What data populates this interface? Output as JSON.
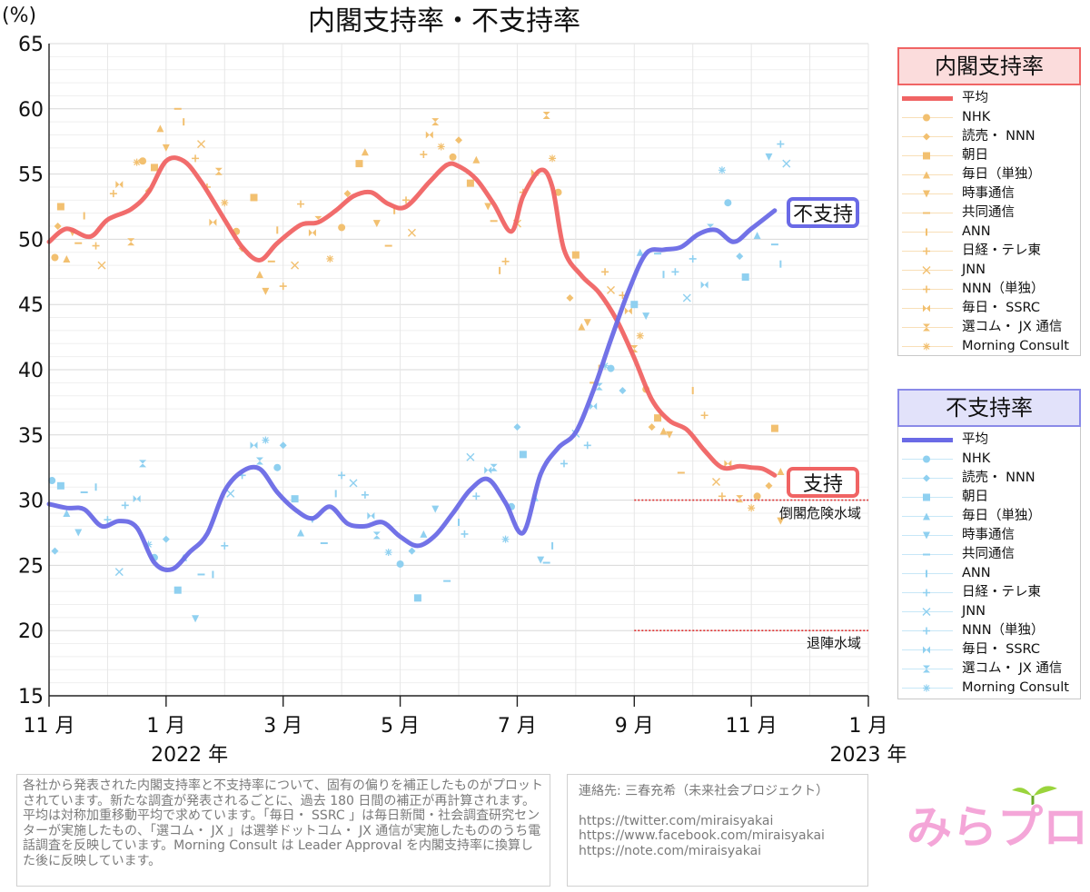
{
  "title": "内閣支持率・不支持率",
  "y_unit": "(%)",
  "colors": {
    "approve_avg": "#f06464",
    "disapprove_avg": "#6a6ae6",
    "approve_head_bg": "#fbdcdc",
    "disapprove_head_bg": "#e2e2fa",
    "approve_points": "#f2c070",
    "disapprove_points": "#8fd0f0",
    "threshold": "#e03030"
  },
  "labels": {
    "disapprove_tag": "不支持",
    "approve_tag": "支持",
    "danger_zone": "倒閣危険水域",
    "resign_zone": "退陣水域"
  },
  "legend_approval": {
    "title": "内閣支持率",
    "items": [
      "平均",
      "NHK",
      "読売・ NNN",
      "朝日",
      "毎日（単独）",
      "時事通信",
      "共同通信",
      "ANN",
      "日経・テレ東",
      "JNN",
      "NNN（単独）",
      "毎日・ SSRC",
      "選コム・ JX 通信",
      "Morning Consult"
    ]
  },
  "legend_disapproval": {
    "title": "不支持率",
    "items": [
      "平均",
      "NHK",
      "読売・ NNN",
      "朝日",
      "毎日（単独）",
      "時事通信",
      "共同通信",
      "ANN",
      "日経・テレ東",
      "JNN",
      "NNN（単独）",
      "毎日・ SSRC",
      "選コム・ JX 通信",
      "Morning Consult"
    ]
  },
  "note": "各社から発表された内閣支持率と不支持率について、固有の偏りを補正したものがプロットされています。新たな調査が発表されるごとに、過去 180 日間の補正が再計算されます。平均は対称加重移動平均で求めています。「毎日・ SSRC 」は毎日新聞・社会調査研究センターが実施したもの、「選コム・ JX 」は選挙ドットコム・ JX 通信が実施したもののうち電話調査を反映しています。Morning Consult は Leader Approval を内閣支持率に換算した後に反映しています。",
  "contact": {
    "title": "連絡先: 三春充希（未来社会プロジェクト）",
    "links": [
      "https://twitter.com/miraisyakai",
      "https://www.facebook.com/miraisyakai",
      "https://note.com/miraisyakai"
    ]
  },
  "logo_text": "みらプロ",
  "chart_data": {
    "type": "line",
    "title": "内閣支持率・不支持率",
    "ylabel": "(%)",
    "ylim": [
      15,
      65
    ],
    "y_ticks": [
      15,
      20,
      25,
      30,
      35,
      40,
      45,
      50,
      55,
      60,
      65
    ],
    "xlim": [
      0,
      14
    ],
    "x_ticks": [
      {
        "x": 0,
        "label": "11 月"
      },
      {
        "x": 2,
        "label": "1 月"
      },
      {
        "x": 4,
        "label": "3 月"
      },
      {
        "x": 6,
        "label": "5 月"
      },
      {
        "x": 8,
        "label": "7 月"
      },
      {
        "x": 10,
        "label": "9 月"
      },
      {
        "x": 12,
        "label": "11 月"
      },
      {
        "x": 14,
        "label": "1 月"
      }
    ],
    "year_labels": [
      {
        "x": 2.4,
        "label": "2022 年"
      },
      {
        "x": 14,
        "label": "2023 年"
      }
    ],
    "x_unit": "months since 2021-11-01",
    "grid": true,
    "thresholds": [
      {
        "y": 30,
        "x_start": 10,
        "label": "倒閣危険水域"
      },
      {
        "y": 20,
        "x_start": 10,
        "label": "退陣水域"
      }
    ],
    "series": [
      {
        "name": "内閣支持率 平均",
        "kind": "average",
        "points": [
          [
            0,
            49.8
          ],
          [
            0.3,
            50.8
          ],
          [
            0.7,
            50.2
          ],
          [
            1.0,
            51.5
          ],
          [
            1.4,
            52.3
          ],
          [
            1.7,
            53.6
          ],
          [
            2.0,
            56.0
          ],
          [
            2.3,
            56.0
          ],
          [
            2.6,
            54.4
          ],
          [
            3.0,
            51.5
          ],
          [
            3.3,
            49.4
          ],
          [
            3.6,
            48.4
          ],
          [
            3.9,
            49.7
          ],
          [
            4.3,
            51.1
          ],
          [
            4.6,
            51.3
          ],
          [
            4.9,
            52.2
          ],
          [
            5.2,
            53.3
          ],
          [
            5.5,
            53.6
          ],
          [
            5.8,
            52.7
          ],
          [
            6.1,
            52.5
          ],
          [
            6.5,
            54.4
          ],
          [
            6.8,
            55.7
          ],
          [
            7.0,
            55.6
          ],
          [
            7.3,
            54.6
          ],
          [
            7.6,
            52.7
          ],
          [
            7.9,
            50.6
          ],
          [
            8.1,
            53.3
          ],
          [
            8.4,
            55.3
          ],
          [
            8.6,
            54.0
          ],
          [
            8.8,
            49.2
          ],
          [
            9.1,
            47.2
          ],
          [
            9.4,
            45.9
          ],
          [
            9.7,
            43.8
          ],
          [
            10.0,
            40.9
          ],
          [
            10.3,
            37.7
          ],
          [
            10.6,
            36.1
          ],
          [
            10.9,
            35.4
          ],
          [
            11.2,
            33.8
          ],
          [
            11.5,
            32.5
          ],
          [
            11.8,
            32.6
          ],
          [
            12.0,
            32.5
          ],
          [
            12.2,
            32.4
          ],
          [
            12.4,
            31.9
          ]
        ]
      },
      {
        "name": "内閣不支持率 平均",
        "kind": "average",
        "points": [
          [
            0,
            29.7
          ],
          [
            0.3,
            29.4
          ],
          [
            0.6,
            29.3
          ],
          [
            0.9,
            28.0
          ],
          [
            1.2,
            28.4
          ],
          [
            1.5,
            27.9
          ],
          [
            1.8,
            25.2
          ],
          [
            2.1,
            24.7
          ],
          [
            2.4,
            26.0
          ],
          [
            2.7,
            27.4
          ],
          [
            3.0,
            30.7
          ],
          [
            3.3,
            32.2
          ],
          [
            3.6,
            32.4
          ],
          [
            3.9,
            30.6
          ],
          [
            4.2,
            29.3
          ],
          [
            4.5,
            28.6
          ],
          [
            4.8,
            29.5
          ],
          [
            5.1,
            28.2
          ],
          [
            5.4,
            28.0
          ],
          [
            5.7,
            28.3
          ],
          [
            6.0,
            27.2
          ],
          [
            6.3,
            26.5
          ],
          [
            6.6,
            27.3
          ],
          [
            6.9,
            29.0
          ],
          [
            7.2,
            30.8
          ],
          [
            7.5,
            31.6
          ],
          [
            7.8,
            29.8
          ],
          [
            8.1,
            27.5
          ],
          [
            8.4,
            32.0
          ],
          [
            8.7,
            34.0
          ],
          [
            9.0,
            35.2
          ],
          [
            9.3,
            38.4
          ],
          [
            9.6,
            42.3
          ],
          [
            9.9,
            46.0
          ],
          [
            10.2,
            48.9
          ],
          [
            10.5,
            49.2
          ],
          [
            10.8,
            49.4
          ],
          [
            11.1,
            50.4
          ],
          [
            11.4,
            50.7
          ],
          [
            11.7,
            49.8
          ],
          [
            12.0,
            50.8
          ],
          [
            12.4,
            52.2
          ]
        ]
      },
      {
        "name": "内閣支持率 各社",
        "kind": "points",
        "points": [
          [
            0.1,
            48.6
          ],
          [
            0.15,
            51
          ],
          [
            0.2,
            52.5
          ],
          [
            0.3,
            48.5
          ],
          [
            0.4,
            50.5
          ],
          [
            0.5,
            49.7
          ],
          [
            0.6,
            51.8
          ],
          [
            0.8,
            49.5
          ],
          [
            0.9,
            48
          ],
          [
            1.1,
            53.5
          ],
          [
            1.2,
            54.2
          ],
          [
            1.4,
            49.8
          ],
          [
            1.5,
            55.9
          ],
          [
            1.6,
            56
          ],
          [
            1.7,
            53.7
          ],
          [
            1.8,
            55.5
          ],
          [
            1.9,
            58.5
          ],
          [
            2.0,
            57
          ],
          [
            2.2,
            60
          ],
          [
            2.3,
            59
          ],
          [
            2.5,
            56.2
          ],
          [
            2.6,
            57.3
          ],
          [
            2.7,
            54
          ],
          [
            2.8,
            51.3
          ],
          [
            2.9,
            55.2
          ],
          [
            3.0,
            52.8
          ],
          [
            3.2,
            50.6
          ],
          [
            3.3,
            49.3
          ],
          [
            3.5,
            53.2
          ],
          [
            3.6,
            47.3
          ],
          [
            3.7,
            46
          ],
          [
            3.8,
            48.3
          ],
          [
            3.9,
            50.7
          ],
          [
            4.0,
            46.4
          ],
          [
            4.2,
            48
          ],
          [
            4.3,
            52.7
          ],
          [
            4.5,
            50.5
          ],
          [
            4.6,
            51.5
          ],
          [
            4.8,
            48.5
          ],
          [
            5.0,
            50.9
          ],
          [
            5.1,
            53.5
          ],
          [
            5.3,
            55.8
          ],
          [
            5.4,
            56.7
          ],
          [
            5.6,
            51.2
          ],
          [
            5.8,
            49.5
          ],
          [
            5.9,
            52.2
          ],
          [
            6.1,
            53
          ],
          [
            6.2,
            50.5
          ],
          [
            6.4,
            56.5
          ],
          [
            6.5,
            58
          ],
          [
            6.6,
            59
          ],
          [
            6.7,
            57.1
          ],
          [
            6.9,
            56.3
          ],
          [
            7.0,
            57.6
          ],
          [
            7.2,
            54.3
          ],
          [
            7.3,
            56.1
          ],
          [
            7.5,
            52.5
          ],
          [
            7.6,
            51.4
          ],
          [
            7.7,
            47.6
          ],
          [
            7.8,
            48.3
          ],
          [
            8.0,
            51.2
          ],
          [
            8.1,
            53.6
          ],
          [
            8.3,
            55.1
          ],
          [
            8.5,
            59.5
          ],
          [
            8.6,
            56.2
          ],
          [
            8.7,
            53.6
          ],
          [
            8.9,
            45.5
          ],
          [
            9.0,
            48.8
          ],
          [
            9.1,
            43.3
          ],
          [
            9.2,
            43.6
          ],
          [
            9.3,
            39
          ],
          [
            9.4,
            40.1
          ],
          [
            9.5,
            47.5
          ],
          [
            9.6,
            46.1
          ],
          [
            9.8,
            45.7
          ],
          [
            9.9,
            44.5
          ],
          [
            10.0,
            41.6
          ],
          [
            10.1,
            42.6
          ],
          [
            10.2,
            38.5
          ],
          [
            10.3,
            35.6
          ],
          [
            10.4,
            36.3
          ],
          [
            10.5,
            35.3
          ],
          [
            10.6,
            35.0
          ],
          [
            10.8,
            32.1
          ],
          [
            11.0,
            38.4
          ],
          [
            11.2,
            36.5
          ],
          [
            11.4,
            31.4
          ],
          [
            11.5,
            30.3
          ],
          [
            11.6,
            32.8
          ],
          [
            11.8,
            30.1
          ],
          [
            12.0,
            29.4
          ],
          [
            12.1,
            30.3
          ],
          [
            12.3,
            31.1
          ],
          [
            12.4,
            35.5
          ],
          [
            12.5,
            32.2
          ],
          [
            12.5,
            28.4
          ]
        ]
      },
      {
        "name": "内閣不支持率 各社",
        "kind": "points",
        "points": [
          [
            0.05,
            31.5
          ],
          [
            0.1,
            26.1
          ],
          [
            0.2,
            31.1
          ],
          [
            0.3,
            29
          ],
          [
            0.5,
            27.5
          ],
          [
            0.6,
            30.6
          ],
          [
            0.8,
            31
          ],
          [
            1.0,
            28.5
          ],
          [
            1.2,
            24.5
          ],
          [
            1.3,
            29.6
          ],
          [
            1.5,
            30.1
          ],
          [
            1.6,
            32.8
          ],
          [
            1.7,
            26.6
          ],
          [
            1.8,
            25.6
          ],
          [
            2.0,
            27
          ],
          [
            2.2,
            23.1
          ],
          [
            2.3,
            25.6
          ],
          [
            2.5,
            20.9
          ],
          [
            2.6,
            24.3
          ],
          [
            2.8,
            24.3
          ],
          [
            3.0,
            26.5
          ],
          [
            3.1,
            30.5
          ],
          [
            3.3,
            31.9
          ],
          [
            3.5,
            34.2
          ],
          [
            3.6,
            33
          ],
          [
            3.7,
            34.6
          ],
          [
            3.9,
            32.5
          ],
          [
            4.0,
            34.2
          ],
          [
            4.2,
            30.1
          ],
          [
            4.3,
            27.5
          ],
          [
            4.5,
            28.5
          ],
          [
            4.7,
            26.7
          ],
          [
            4.9,
            30.5
          ],
          [
            5.0,
            31.9
          ],
          [
            5.2,
            31.3
          ],
          [
            5.4,
            30.4
          ],
          [
            5.5,
            28.8
          ],
          [
            5.6,
            27.3
          ],
          [
            5.8,
            26
          ],
          [
            6.0,
            25.1
          ],
          [
            6.2,
            26.1
          ],
          [
            6.3,
            22.5
          ],
          [
            6.4,
            27.4
          ],
          [
            6.6,
            29.3
          ],
          [
            6.8,
            23.8
          ],
          [
            7.0,
            28.3
          ],
          [
            7.1,
            27.4
          ],
          [
            7.2,
            33.3
          ],
          [
            7.3,
            30.3
          ],
          [
            7.5,
            32.3
          ],
          [
            7.6,
            32.5
          ],
          [
            7.8,
            27
          ],
          [
            7.9,
            29.5
          ],
          [
            8.0,
            35.6
          ],
          [
            8.1,
            33.5
          ],
          [
            8.3,
            30.2
          ],
          [
            8.4,
            25.4
          ],
          [
            8.5,
            25.2
          ],
          [
            8.6,
            26.5
          ],
          [
            8.8,
            32.8
          ],
          [
            9.0,
            35.1
          ],
          [
            9.2,
            34.2
          ],
          [
            9.3,
            37.2
          ],
          [
            9.4,
            38.7
          ],
          [
            9.5,
            40.3
          ],
          [
            9.6,
            40.1
          ],
          [
            9.8,
            38.4
          ],
          [
            10.0,
            45
          ],
          [
            10.1,
            49
          ],
          [
            10.2,
            44.1
          ],
          [
            10.4,
            48.9
          ],
          [
            10.5,
            47.3
          ],
          [
            10.7,
            47.5
          ],
          [
            10.9,
            45.5
          ],
          [
            11.0,
            48.5
          ],
          [
            11.2,
            46.5
          ],
          [
            11.3,
            50.9
          ],
          [
            11.5,
            55.3
          ],
          [
            11.6,
            52.8
          ],
          [
            11.8,
            48.7
          ],
          [
            11.9,
            47.1
          ],
          [
            12.1,
            50.3
          ],
          [
            12.3,
            56.3
          ],
          [
            12.4,
            49.6
          ],
          [
            12.5,
            48.1
          ],
          [
            12.5,
            57.3
          ],
          [
            12.6,
            55.8
          ]
        ]
      }
    ]
  }
}
